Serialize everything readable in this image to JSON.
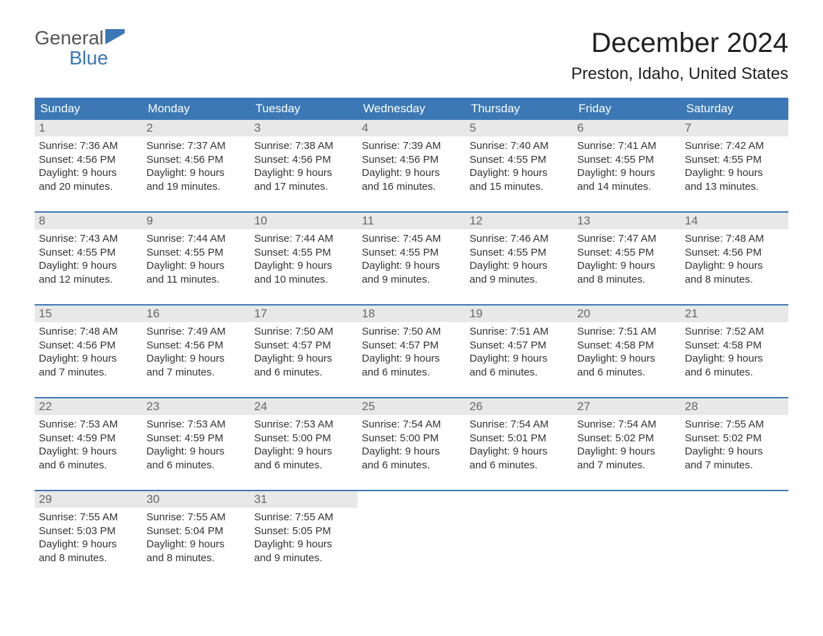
{
  "logo": {
    "text_top": "General",
    "text_bottom": "Blue",
    "icon_color": "#3b78b5"
  },
  "title": "December 2024",
  "location": "Preston, Idaho, United States",
  "colors": {
    "header_bg": "#3b78b5",
    "header_text": "#ffffff",
    "daynum_bg": "#e8e8e8",
    "daynum_text": "#666666",
    "body_text": "#333333",
    "week_border": "#3b78b5"
  },
  "day_names": [
    "Sunday",
    "Monday",
    "Tuesday",
    "Wednesday",
    "Thursday",
    "Friday",
    "Saturday"
  ],
  "weeks": [
    [
      {
        "n": "1",
        "sr": "Sunrise: 7:36 AM",
        "ss": "Sunset: 4:56 PM",
        "d1": "Daylight: 9 hours",
        "d2": "and 20 minutes."
      },
      {
        "n": "2",
        "sr": "Sunrise: 7:37 AM",
        "ss": "Sunset: 4:56 PM",
        "d1": "Daylight: 9 hours",
        "d2": "and 19 minutes."
      },
      {
        "n": "3",
        "sr": "Sunrise: 7:38 AM",
        "ss": "Sunset: 4:56 PM",
        "d1": "Daylight: 9 hours",
        "d2": "and 17 minutes."
      },
      {
        "n": "4",
        "sr": "Sunrise: 7:39 AM",
        "ss": "Sunset: 4:56 PM",
        "d1": "Daylight: 9 hours",
        "d2": "and 16 minutes."
      },
      {
        "n": "5",
        "sr": "Sunrise: 7:40 AM",
        "ss": "Sunset: 4:55 PM",
        "d1": "Daylight: 9 hours",
        "d2": "and 15 minutes."
      },
      {
        "n": "6",
        "sr": "Sunrise: 7:41 AM",
        "ss": "Sunset: 4:55 PM",
        "d1": "Daylight: 9 hours",
        "d2": "and 14 minutes."
      },
      {
        "n": "7",
        "sr": "Sunrise: 7:42 AM",
        "ss": "Sunset: 4:55 PM",
        "d1": "Daylight: 9 hours",
        "d2": "and 13 minutes."
      }
    ],
    [
      {
        "n": "8",
        "sr": "Sunrise: 7:43 AM",
        "ss": "Sunset: 4:55 PM",
        "d1": "Daylight: 9 hours",
        "d2": "and 12 minutes."
      },
      {
        "n": "9",
        "sr": "Sunrise: 7:44 AM",
        "ss": "Sunset: 4:55 PM",
        "d1": "Daylight: 9 hours",
        "d2": "and 11 minutes."
      },
      {
        "n": "10",
        "sr": "Sunrise: 7:44 AM",
        "ss": "Sunset: 4:55 PM",
        "d1": "Daylight: 9 hours",
        "d2": "and 10 minutes."
      },
      {
        "n": "11",
        "sr": "Sunrise: 7:45 AM",
        "ss": "Sunset: 4:55 PM",
        "d1": "Daylight: 9 hours",
        "d2": "and 9 minutes."
      },
      {
        "n": "12",
        "sr": "Sunrise: 7:46 AM",
        "ss": "Sunset: 4:55 PM",
        "d1": "Daylight: 9 hours",
        "d2": "and 9 minutes."
      },
      {
        "n": "13",
        "sr": "Sunrise: 7:47 AM",
        "ss": "Sunset: 4:55 PM",
        "d1": "Daylight: 9 hours",
        "d2": "and 8 minutes."
      },
      {
        "n": "14",
        "sr": "Sunrise: 7:48 AM",
        "ss": "Sunset: 4:56 PM",
        "d1": "Daylight: 9 hours",
        "d2": "and 8 minutes."
      }
    ],
    [
      {
        "n": "15",
        "sr": "Sunrise: 7:48 AM",
        "ss": "Sunset: 4:56 PM",
        "d1": "Daylight: 9 hours",
        "d2": "and 7 minutes."
      },
      {
        "n": "16",
        "sr": "Sunrise: 7:49 AM",
        "ss": "Sunset: 4:56 PM",
        "d1": "Daylight: 9 hours",
        "d2": "and 7 minutes."
      },
      {
        "n": "17",
        "sr": "Sunrise: 7:50 AM",
        "ss": "Sunset: 4:57 PM",
        "d1": "Daylight: 9 hours",
        "d2": "and 6 minutes."
      },
      {
        "n": "18",
        "sr": "Sunrise: 7:50 AM",
        "ss": "Sunset: 4:57 PM",
        "d1": "Daylight: 9 hours",
        "d2": "and 6 minutes."
      },
      {
        "n": "19",
        "sr": "Sunrise: 7:51 AM",
        "ss": "Sunset: 4:57 PM",
        "d1": "Daylight: 9 hours",
        "d2": "and 6 minutes."
      },
      {
        "n": "20",
        "sr": "Sunrise: 7:51 AM",
        "ss": "Sunset: 4:58 PM",
        "d1": "Daylight: 9 hours",
        "d2": "and 6 minutes."
      },
      {
        "n": "21",
        "sr": "Sunrise: 7:52 AM",
        "ss": "Sunset: 4:58 PM",
        "d1": "Daylight: 9 hours",
        "d2": "and 6 minutes."
      }
    ],
    [
      {
        "n": "22",
        "sr": "Sunrise: 7:53 AM",
        "ss": "Sunset: 4:59 PM",
        "d1": "Daylight: 9 hours",
        "d2": "and 6 minutes."
      },
      {
        "n": "23",
        "sr": "Sunrise: 7:53 AM",
        "ss": "Sunset: 4:59 PM",
        "d1": "Daylight: 9 hours",
        "d2": "and 6 minutes."
      },
      {
        "n": "24",
        "sr": "Sunrise: 7:53 AM",
        "ss": "Sunset: 5:00 PM",
        "d1": "Daylight: 9 hours",
        "d2": "and 6 minutes."
      },
      {
        "n": "25",
        "sr": "Sunrise: 7:54 AM",
        "ss": "Sunset: 5:00 PM",
        "d1": "Daylight: 9 hours",
        "d2": "and 6 minutes."
      },
      {
        "n": "26",
        "sr": "Sunrise: 7:54 AM",
        "ss": "Sunset: 5:01 PM",
        "d1": "Daylight: 9 hours",
        "d2": "and 6 minutes."
      },
      {
        "n": "27",
        "sr": "Sunrise: 7:54 AM",
        "ss": "Sunset: 5:02 PM",
        "d1": "Daylight: 9 hours",
        "d2": "and 7 minutes."
      },
      {
        "n": "28",
        "sr": "Sunrise: 7:55 AM",
        "ss": "Sunset: 5:02 PM",
        "d1": "Daylight: 9 hours",
        "d2": "and 7 minutes."
      }
    ],
    [
      {
        "n": "29",
        "sr": "Sunrise: 7:55 AM",
        "ss": "Sunset: 5:03 PM",
        "d1": "Daylight: 9 hours",
        "d2": "and 8 minutes."
      },
      {
        "n": "30",
        "sr": "Sunrise: 7:55 AM",
        "ss": "Sunset: 5:04 PM",
        "d1": "Daylight: 9 hours",
        "d2": "and 8 minutes."
      },
      {
        "n": "31",
        "sr": "Sunrise: 7:55 AM",
        "ss": "Sunset: 5:05 PM",
        "d1": "Daylight: 9 hours",
        "d2": "and 9 minutes."
      },
      null,
      null,
      null,
      null
    ]
  ]
}
